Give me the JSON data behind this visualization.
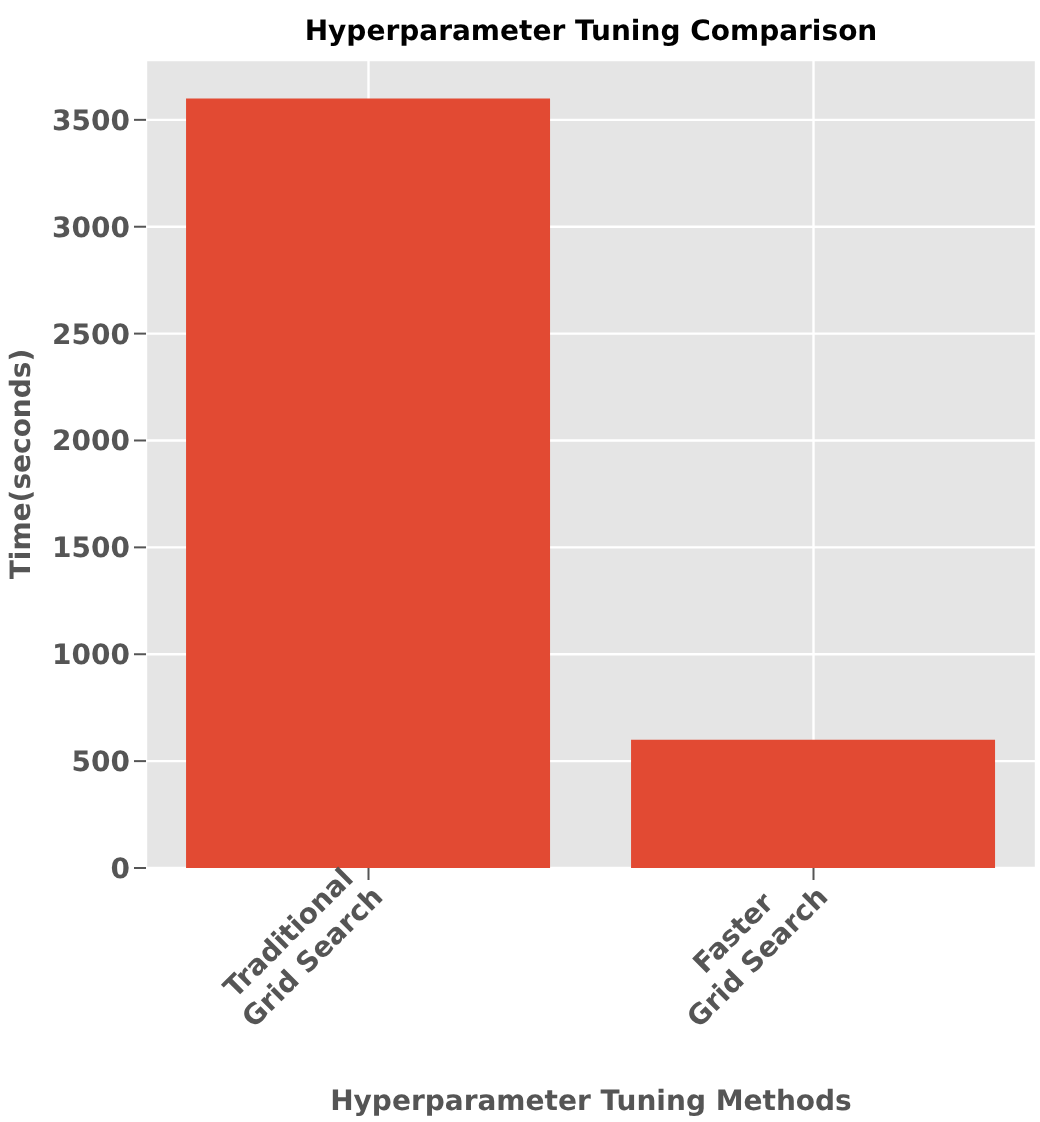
{
  "chart_data": {
    "type": "bar",
    "title": "Hyperparameter Tuning Comparison",
    "xlabel": "Hyperparameter Tuning Methods",
    "ylabel": "Time(seconds)",
    "categories": [
      "Traditional Grid Search",
      "Faster Grid Search"
    ],
    "values": [
      3600,
      600
    ],
    "color": "#e24a33",
    "ylim": [
      0,
      3780
    ],
    "yticks": [
      0,
      500,
      1000,
      1500,
      2000,
      2500,
      3000,
      3500
    ],
    "grid": true
  }
}
